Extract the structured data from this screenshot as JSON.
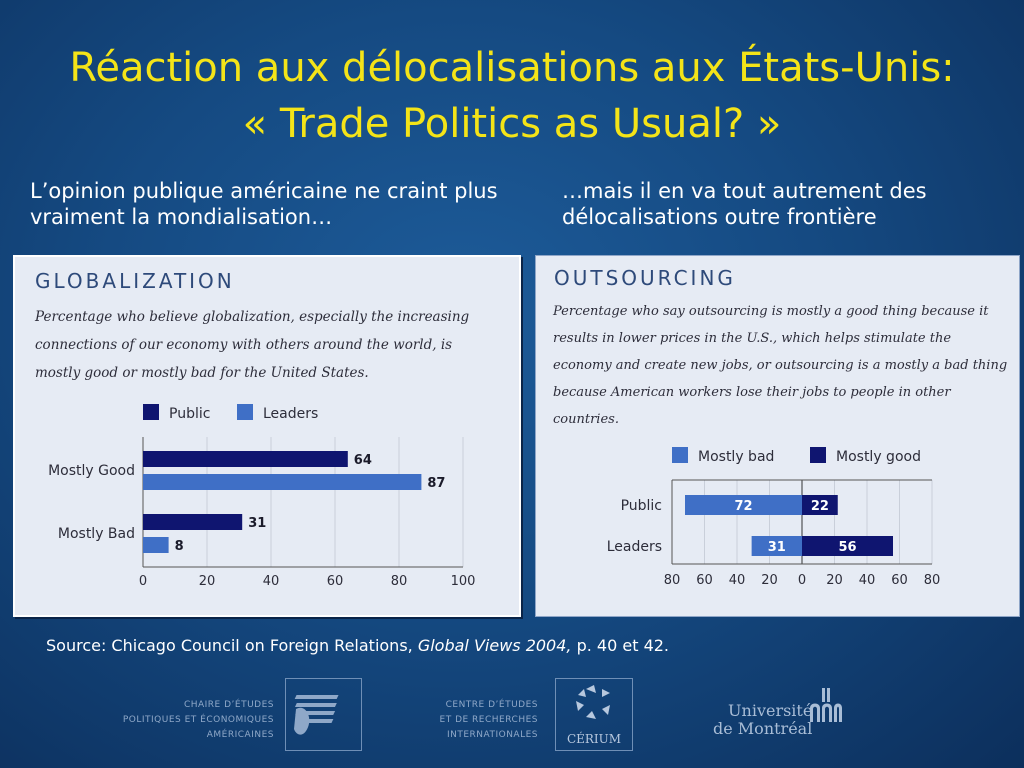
{
  "slide": {
    "title_line1": "Réaction aux délocalisations aux États-Unis:",
    "title_line2": "« Trade Politics as Usual? »",
    "left_caption": "L’opinion publique américaine ne craint plus vraiment la mondialisation…",
    "right_caption": "…mais il en va tout autrement des délocalisations outre frontière",
    "source_prefix": "Source: Chicago Council on Foreign Relations, ",
    "source_title": "Global Views 2004,",
    "source_suffix": " p. 40 et 42."
  },
  "logos": {
    "ceppa_text": [
      "CHAIRE D’ÉTUDES",
      "POLITIQUES ET ÉCONOMIQUES",
      "AMÉRICAINES"
    ],
    "cerium_text": [
      "CENTRE D’ÉTUDES",
      "ET DE RECHERCHES",
      "INTERNATIONALES"
    ],
    "cerium_label": "CÉRIUM",
    "udem_line1": "Université",
    "udem_line2": "de Montréal"
  },
  "colors": {
    "public": "#0f1570",
    "leaders": "#3f6fc6",
    "title": "#f4e418"
  },
  "chart_data": [
    {
      "type": "bar",
      "orientation": "horizontal",
      "title": "GLOBALIZATION",
      "subtitle": "Percentage who believe globalization, especially the increasing connections of our economy with others around the world, is mostly good or mostly bad for the United States.",
      "categories": [
        "Mostly Good",
        "Mostly Bad"
      ],
      "series": [
        {
          "name": "Public",
          "color": "#0f1570",
          "values": [
            64,
            31
          ]
        },
        {
          "name": "Leaders",
          "color": "#3f6fc6",
          "values": [
            87,
            8
          ]
        }
      ],
      "xlim": [
        0,
        100
      ],
      "xticks": [
        "0",
        "20",
        "40",
        "60",
        "80",
        "100"
      ],
      "grid": true,
      "legend": "top"
    },
    {
      "type": "bar",
      "orientation": "horizontal-diverging",
      "title": "OUTSOURCING",
      "subtitle": "Percentage who say outsourcing is mostly a good thing because it results in lower prices in the U.S., which helps stimulate the economy and create new jobs, or outsourcing is a mostly a bad thing because American workers lose their jobs to people in other countries.",
      "categories": [
        "Public",
        "Leaders"
      ],
      "series": [
        {
          "name": "Mostly bad",
          "color": "#3f6fc6",
          "values": [
            72,
            31
          ]
        },
        {
          "name": "Mostly good",
          "color": "#0f1570",
          "values": [
            22,
            56
          ]
        }
      ],
      "xlim": [
        -80,
        80
      ],
      "xticks": [
        "80",
        "60",
        "40",
        "20",
        "0",
        "20",
        "40",
        "60",
        "80"
      ],
      "grid": true,
      "legend": "top"
    }
  ]
}
